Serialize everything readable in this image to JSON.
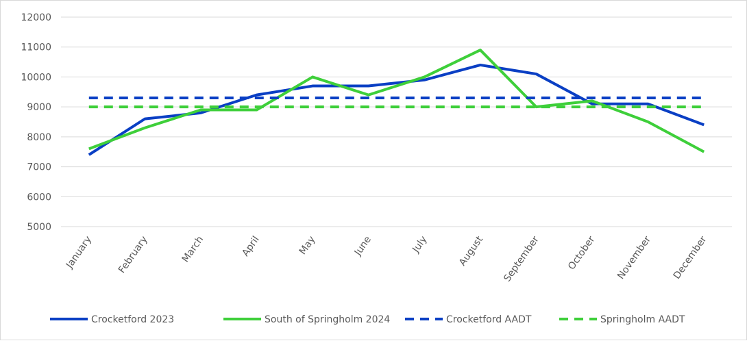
{
  "chart_data": {
    "type": "line",
    "title": "",
    "xlabel": "",
    "ylabel": "",
    "categories": [
      "January",
      "February",
      "March",
      "April",
      "May",
      "June",
      "July",
      "August",
      "September",
      "October",
      "November",
      "December"
    ],
    "ylim": [
      5000,
      12000
    ],
    "yticks": [
      5000,
      6000,
      7000,
      8000,
      9000,
      10000,
      11000,
      12000
    ],
    "grid": true,
    "legend_position": "bottom",
    "series": [
      {
        "name": "Crocketford 2023",
        "color": "#0a3fc4",
        "dash": false,
        "values": [
          7400,
          8600,
          8800,
          9400,
          9700,
          9700,
          9900,
          10400,
          10100,
          9100,
          9100,
          8400
        ]
      },
      {
        "name": "South of Springholm 2024",
        "color": "#3ecf3a",
        "dash": false,
        "values": [
          7600,
          8300,
          8900,
          8900,
          10000,
          9400,
          10000,
          10900,
          9000,
          9200,
          8500,
          7500
        ]
      },
      {
        "name": "Crocketford AADT",
        "color": "#0a3fc4",
        "dash": true,
        "values": [
          9300,
          9300,
          9300,
          9300,
          9300,
          9300,
          9300,
          9300,
          9300,
          9300,
          9300,
          9300
        ]
      },
      {
        "name": "Springholm AADT",
        "color": "#3ecf3a",
        "dash": true,
        "values": [
          9000,
          9000,
          9000,
          9000,
          9000,
          9000,
          9000,
          9000,
          9000,
          9000,
          9000,
          9000
        ]
      }
    ]
  }
}
